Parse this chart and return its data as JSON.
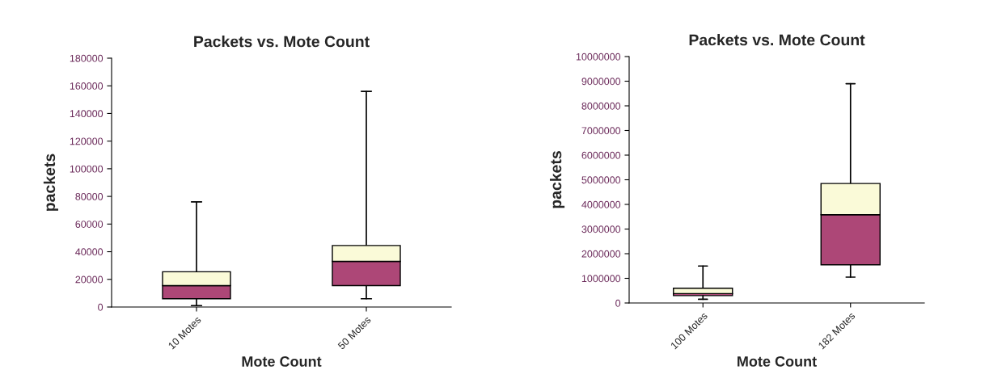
{
  "chart_data": [
    {
      "type": "box",
      "title": "Packets vs. Mote Count",
      "xlabel": "Mote Count",
      "ylabel": "packets",
      "categories": [
        "10 Motes",
        "50 Motes"
      ],
      "boxes": [
        {
          "low": 1000,
          "q1": 6000,
          "median": 15500,
          "q3": 25500,
          "high": 76000
        },
        {
          "low": 6000,
          "q1": 15500,
          "median": 33000,
          "q3": 44500,
          "high": 156000
        }
      ],
      "colors": [
        "#ad4777",
        "#ad4777"
      ],
      "ylim": [
        0,
        180000
      ],
      "yticks": [
        0,
        20000,
        40000,
        60000,
        80000,
        100000,
        120000,
        140000,
        160000,
        180000
      ],
      "grid": false,
      "legend": false
    },
    {
      "type": "box",
      "title": "Packets vs. Mote Count",
      "xlabel": "Mote Count",
      "ylabel": "packets",
      "categories": [
        "100 Motes",
        "182 Motes"
      ],
      "boxes": [
        {
          "low": 150000,
          "q1": 300000,
          "median": 380000,
          "q3": 600000,
          "high": 1500000
        },
        {
          "low": 1050000,
          "q1": 1550000,
          "median": 3580000,
          "q3": 4850000,
          "high": 8900000
        }
      ],
      "colors": [
        "#ad4777",
        "#ad4777"
      ],
      "ylim": [
        0,
        10000000
      ],
      "yticks": [
        0,
        1000000,
        2000000,
        3000000,
        4000000,
        5000000,
        6000000,
        7000000,
        8000000,
        9000000,
        10000000
      ],
      "grid": false,
      "legend": false
    }
  ]
}
